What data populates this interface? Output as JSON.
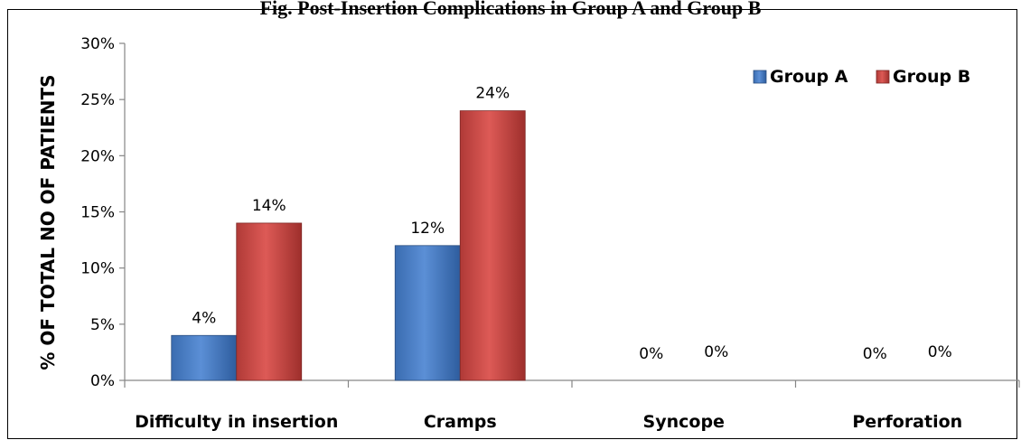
{
  "chart_data": {
    "type": "bar",
    "title": "",
    "categories": [
      "Difficulty in insertion",
      "Cramps",
      "Syncope",
      "Perforation"
    ],
    "series": [
      {
        "name": "Group A",
        "values": [
          4,
          12,
          0,
          0
        ],
        "labels": [
          "4%",
          "12%",
          "0%",
          "0%"
        ],
        "color": "#4F81BD"
      },
      {
        "name": "Group B",
        "values": [
          14,
          24,
          0,
          0
        ],
        "labels": [
          "14%",
          "24%",
          "0%",
          "0%"
        ],
        "color": "#C0504D"
      }
    ],
    "ylabel": "% OF TOTAL NO OF PATIENTS",
    "xlabel": "",
    "ylim": [
      0,
      30
    ],
    "yticks": [
      "0%",
      "5%",
      "10%",
      "15%",
      "20%",
      "25%",
      "30%"
    ],
    "legend_position": "top-right",
    "grid": false
  },
  "header": {
    "clipped_title": "Fig. Post-Insertion Complications in Group A and Group B"
  }
}
